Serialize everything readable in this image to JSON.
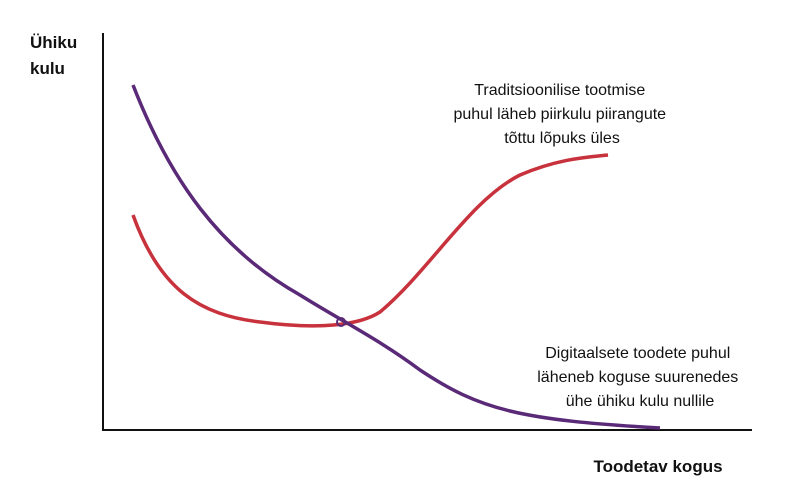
{
  "axes": {
    "y_label": [
      "Ühiku",
      "kulu"
    ],
    "x_label": "Toodetav kogus"
  },
  "annotations": [
    {
      "lines": [
        "Traditsioonilise tootmise",
        "puhul läheb piirkulu piirangute",
        "tõttu lõpuks üles"
      ]
    },
    {
      "lines": [
        "Digitaalsete toodete puhul",
        "läheneb koguse suurenedes",
        "ühe ühiku kulu nullile"
      ]
    }
  ]
}
